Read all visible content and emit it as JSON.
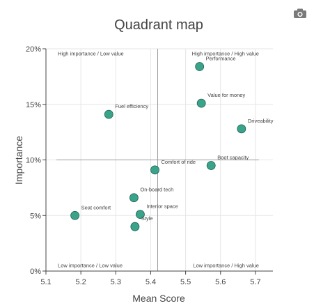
{
  "chart_data": {
    "type": "scatter",
    "title": "Quadrant map",
    "xlabel": "Mean Score",
    "ylabel": "Importance",
    "xlim": [
      5.1,
      5.75
    ],
    "ylim": [
      0,
      20
    ],
    "x_ticks": [
      5.1,
      5.2,
      5.3,
      5.4,
      5.5,
      5.6,
      5.7
    ],
    "x_tick_labels": [
      "5.1",
      "5.2",
      "5.3",
      "5.4",
      "5.5",
      "5.6",
      "5.7"
    ],
    "y_ticks": [
      0,
      5,
      10,
      15,
      20
    ],
    "y_tick_labels": [
      "0%",
      "5%",
      "10%",
      "15%",
      "20%"
    ],
    "points": [
      {
        "label": "Performance",
        "x": 5.54,
        "y": 18.4
      },
      {
        "label": "Value for money",
        "x": 5.545,
        "y": 15.1
      },
      {
        "label": "Driveability",
        "x": 5.66,
        "y": 12.8
      },
      {
        "label": "Fuel efficiency",
        "x": 5.28,
        "y": 14.1
      },
      {
        "label": "Boot capacity",
        "x": 5.573,
        "y": 9.5
      },
      {
        "label": "Comfort of ride",
        "x": 5.412,
        "y": 9.1
      },
      {
        "label": "On-board tech",
        "x": 5.352,
        "y": 6.6
      },
      {
        "label": "Interior space",
        "x": 5.37,
        "y": 5.1
      },
      {
        "label": "Style",
        "x": 5.355,
        "y": 4.0
      },
      {
        "label": "Seat comfort",
        "x": 5.183,
        "y": 5.0
      }
    ],
    "divider_x": 5.42,
    "divider_y": 10,
    "divider_x_span": [
      5.13,
      5.71
    ],
    "quadrant_labels": {
      "top_left": "High importance / Low value",
      "top_right": "High importance / High value",
      "bottom_left": "Low importance / Low value",
      "bottom_right": "Low importance / High value"
    },
    "marker_color": "#3aa48a",
    "marker_edge_color": "#1f5d4d",
    "grid": true
  },
  "toolbar": {
    "camera_icon": "camera-icon"
  }
}
